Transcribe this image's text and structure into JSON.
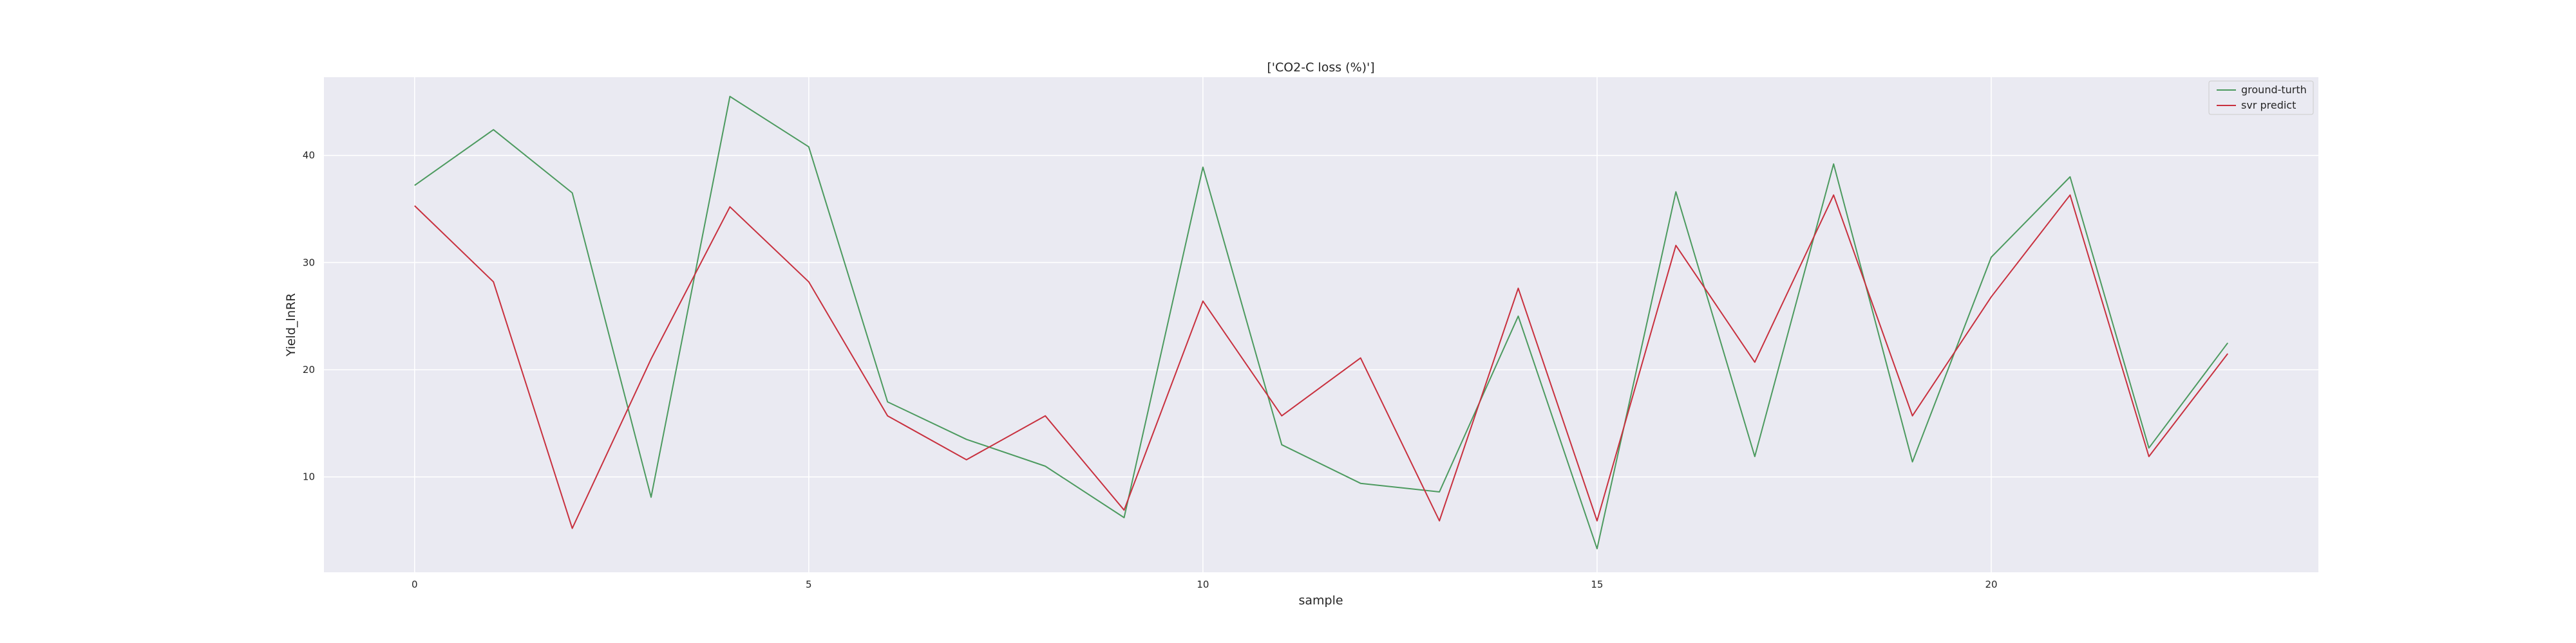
{
  "chart_data": {
    "type": "line",
    "title": "['CO2-C loss (%)']",
    "xlabel": "sample",
    "ylabel": "Yield_lnRR",
    "xlim": [
      -1.15,
      24.15
    ],
    "ylim": [
      1.1,
      47.3
    ],
    "xticks": [
      0,
      5,
      10,
      15,
      20
    ],
    "yticks": [
      10,
      20,
      30,
      40
    ],
    "grid": true,
    "legend_position": "top-right",
    "x": [
      0,
      1,
      2,
      3,
      4,
      5,
      6,
      7,
      8,
      9,
      10,
      11,
      12,
      13,
      14,
      15,
      16,
      17,
      18,
      19,
      20,
      21,
      22,
      23
    ],
    "series": [
      {
        "name": "ground-turth",
        "color": "#4c9a5f",
        "values": [
          37.2,
          42.4,
          36.5,
          8.1,
          45.5,
          40.8,
          17.0,
          13.5,
          11.0,
          6.2,
          38.9,
          13.0,
          9.4,
          8.6,
          25.0,
          3.3,
          36.6,
          11.9,
          39.2,
          11.4,
          30.5,
          38.0,
          12.7,
          22.5
        ]
      },
      {
        "name": "svr predict",
        "color": "#c8303e",
        "values": [
          35.3,
          28.2,
          5.2,
          21.0,
          35.2,
          28.2,
          15.7,
          11.6,
          15.7,
          6.9,
          26.4,
          15.7,
          21.1,
          5.9,
          27.6,
          5.9,
          31.6,
          20.7,
          36.3,
          15.7,
          26.8,
          36.3,
          11.9,
          21.5
        ]
      }
    ]
  }
}
